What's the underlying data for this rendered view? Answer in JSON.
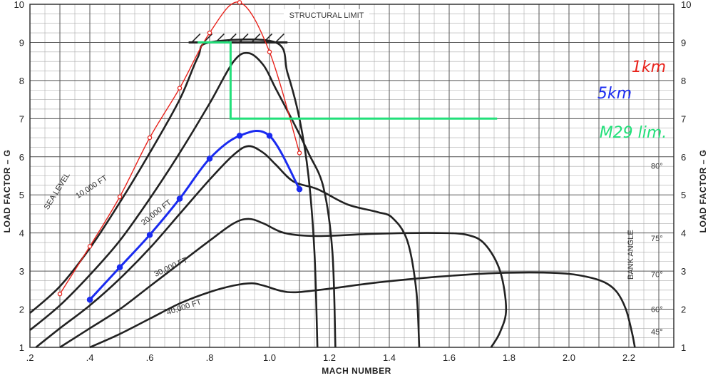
{
  "chart_data": {
    "type": "line",
    "xlabel": "MACH NUMBER",
    "ylabel_left": "LOAD FACTOR – G",
    "ylabel_right": "LOAD FACTOR – G",
    "xlim": [
      0.2,
      2.35
    ],
    "ylim": [
      1,
      10
    ],
    "x_ticks": [
      ".2",
      ".4",
      ".6",
      ".8",
      "1.0",
      "1.2",
      "1.4",
      "1.6",
      "1.8",
      "2.0",
      "2.2"
    ],
    "y_ticks": [
      "1",
      "2",
      "3",
      "4",
      "5",
      "6",
      "7",
      "8",
      "9",
      "10"
    ],
    "grid": true,
    "structural_limit": {
      "label": "STRUCTURAL LIMIT",
      "g": 9
    },
    "bank_angle": {
      "title": "BANK ANGLE",
      "labels": [
        {
          "text": "80°",
          "g": 5.76
        },
        {
          "text": "75°",
          "g": 3.86
        },
        {
          "text": "70°",
          "g": 2.92
        },
        {
          "text": "60°",
          "g": 2.0
        },
        {
          "text": "45°",
          "g": 1.41
        }
      ]
    },
    "altitude_curves": [
      {
        "name": "SEA LEVEL",
        "points": [
          [
            0.2,
            1.9
          ],
          [
            0.3,
            2.6
          ],
          [
            0.4,
            3.6
          ],
          [
            0.5,
            4.8
          ],
          [
            0.6,
            6.1
          ],
          [
            0.7,
            7.5
          ],
          [
            0.76,
            8.6
          ],
          [
            0.8,
            9.0
          ],
          [
            1.02,
            9.0
          ],
          [
            1.06,
            8.2
          ],
          [
            1.1,
            7.0
          ],
          [
            1.13,
            5.5
          ],
          [
            1.15,
            3.5
          ],
          [
            1.16,
            1.0
          ]
        ]
      },
      {
        "name": "10,000 FT",
        "points": [
          [
            0.2,
            1.45
          ],
          [
            0.3,
            2.1
          ],
          [
            0.4,
            2.9
          ],
          [
            0.5,
            3.8
          ],
          [
            0.6,
            4.9
          ],
          [
            0.7,
            6.1
          ],
          [
            0.8,
            7.4
          ],
          [
            0.88,
            8.5
          ],
          [
            0.93,
            8.72
          ],
          [
            0.98,
            8.4
          ],
          [
            1.02,
            7.8
          ],
          [
            1.08,
            6.9
          ],
          [
            1.13,
            6.1
          ],
          [
            1.18,
            5.2
          ],
          [
            1.21,
            3.5
          ],
          [
            1.22,
            1.0
          ]
        ]
      },
      {
        "name": "20,000 FT",
        "points": [
          [
            0.22,
            1.0
          ],
          [
            0.3,
            1.5
          ],
          [
            0.4,
            2.1
          ],
          [
            0.5,
            2.8
          ],
          [
            0.6,
            3.6
          ],
          [
            0.7,
            4.5
          ],
          [
            0.8,
            5.4
          ],
          [
            0.88,
            6.05
          ],
          [
            0.93,
            6.28
          ],
          [
            0.98,
            6.1
          ],
          [
            1.02,
            5.8
          ],
          [
            1.08,
            5.35
          ],
          [
            1.16,
            5.15
          ],
          [
            1.26,
            4.75
          ],
          [
            1.36,
            4.55
          ],
          [
            1.41,
            4.4
          ],
          [
            1.46,
            3.8
          ],
          [
            1.49,
            2.5
          ],
          [
            1.5,
            1.0
          ]
        ]
      },
      {
        "name": "30,000 FT",
        "points": [
          [
            0.3,
            1.0
          ],
          [
            0.4,
            1.5
          ],
          [
            0.5,
            2.0
          ],
          [
            0.6,
            2.6
          ],
          [
            0.7,
            3.2
          ],
          [
            0.8,
            3.8
          ],
          [
            0.88,
            4.25
          ],
          [
            0.93,
            4.37
          ],
          [
            0.98,
            4.25
          ],
          [
            1.05,
            4.0
          ],
          [
            1.16,
            3.92
          ],
          [
            1.36,
            3.98
          ],
          [
            1.56,
            4.0
          ],
          [
            1.66,
            3.95
          ],
          [
            1.72,
            3.7
          ],
          [
            1.77,
            3.0
          ],
          [
            1.79,
            2.0
          ],
          [
            1.77,
            1.4
          ],
          [
            1.74,
            1.0
          ]
        ]
      },
      {
        "name": "40,000 FT",
        "points": [
          [
            0.4,
            1.0
          ],
          [
            0.5,
            1.35
          ],
          [
            0.6,
            1.75
          ],
          [
            0.7,
            2.15
          ],
          [
            0.8,
            2.45
          ],
          [
            0.88,
            2.62
          ],
          [
            0.94,
            2.68
          ],
          [
            0.98,
            2.62
          ],
          [
            1.06,
            2.45
          ],
          [
            1.16,
            2.5
          ],
          [
            1.36,
            2.7
          ],
          [
            1.56,
            2.85
          ],
          [
            1.76,
            2.95
          ],
          [
            1.96,
            2.95
          ],
          [
            2.06,
            2.85
          ],
          [
            2.12,
            2.7
          ],
          [
            2.16,
            2.45
          ],
          [
            2.19,
            2.0
          ],
          [
            2.21,
            1.4
          ],
          [
            2.22,
            1.0
          ]
        ]
      }
    ],
    "overlays": [
      {
        "name": "1km",
        "color": "#e8231c",
        "points": [
          [
            0.3,
            2.4
          ],
          [
            0.4,
            3.65
          ],
          [
            0.5,
            4.95
          ],
          [
            0.6,
            6.5
          ],
          [
            0.7,
            7.8
          ],
          [
            0.8,
            9.25
          ],
          [
            0.9,
            10.05
          ],
          [
            1.0,
            8.75
          ],
          [
            1.1,
            6.1
          ]
        ]
      },
      {
        "name": "5km",
        "color": "#1a2bf0",
        "points": [
          [
            0.4,
            2.25
          ],
          [
            0.5,
            3.1
          ],
          [
            0.6,
            3.95
          ],
          [
            0.7,
            4.9
          ],
          [
            0.8,
            5.95
          ],
          [
            0.9,
            6.55
          ],
          [
            1.0,
            6.55
          ],
          [
            1.1,
            5.15
          ]
        ]
      },
      {
        "name": "M29 lim.",
        "color": "#22e07a",
        "points": [
          [
            0.76,
            9.0
          ],
          [
            0.87,
            9.0
          ],
          [
            0.87,
            7.0
          ],
          [
            1.76,
            7.0
          ]
        ]
      }
    ]
  }
}
